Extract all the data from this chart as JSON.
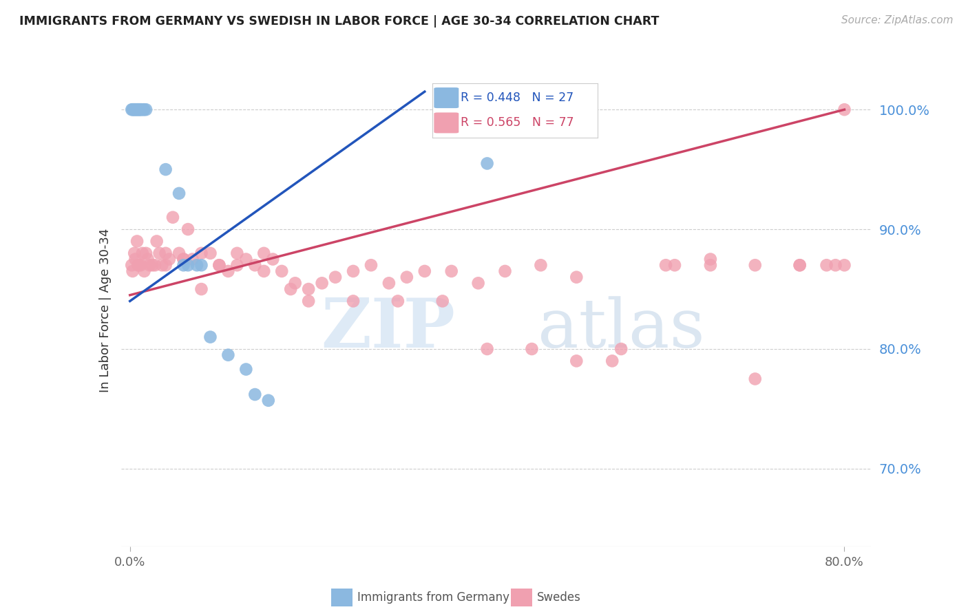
{
  "title": "IMMIGRANTS FROM GERMANY VS SWEDISH IN LABOR FORCE | AGE 30-34 CORRELATION CHART",
  "source": "Source: ZipAtlas.com",
  "ylabel": "In Labor Force | Age 30-34",
  "y_tick_labels_right": [
    "100.0%",
    "90.0%",
    "80.0%",
    "70.0%"
  ],
  "legend_label_blue": "Immigrants from Germany",
  "legend_label_pink": "Swedes",
  "legend_r_blue": "R = 0.448",
  "legend_n_blue": "N = 27",
  "legend_r_pink": "R = 0.565",
  "legend_n_pink": "N = 77",
  "blue_color": "#8BB8E0",
  "pink_color": "#F0A0B0",
  "blue_line_color": "#2255BB",
  "pink_line_color": "#CC4466",
  "right_axis_color": "#4A90D9",
  "watermark_zip": "ZIP",
  "watermark_atlas": "atlas",
  "xlim": [
    -0.01,
    0.83
  ],
  "ylim": [
    0.635,
    1.03
  ],
  "yticks_right": [
    1.0,
    0.9,
    0.8,
    0.7
  ],
  "xticks": [
    0.0,
    0.8
  ],
  "grid_color": "#CCCCCC",
  "background_color": "#FFFFFF",
  "blue_x": [
    0.002,
    0.003,
    0.004,
    0.005,
    0.006,
    0.007,
    0.008,
    0.009,
    0.01,
    0.011,
    0.012,
    0.013,
    0.015,
    0.016,
    0.018,
    0.04,
    0.055,
    0.065,
    0.08,
    0.09,
    0.11,
    0.13,
    0.14,
    0.155,
    0.06,
    0.075,
    0.4
  ],
  "blue_y": [
    1.0,
    1.0,
    1.0,
    1.0,
    1.0,
    1.0,
    1.0,
    1.0,
    1.0,
    1.0,
    1.0,
    1.0,
    1.0,
    1.0,
    1.0,
    0.95,
    0.93,
    0.87,
    0.87,
    0.81,
    0.795,
    0.783,
    0.762,
    0.757,
    0.87,
    0.87,
    0.955
  ],
  "pink_x": [
    0.002,
    0.003,
    0.005,
    0.006,
    0.008,
    0.009,
    0.01,
    0.012,
    0.014,
    0.016,
    0.018,
    0.02,
    0.022,
    0.025,
    0.028,
    0.03,
    0.033,
    0.036,
    0.04,
    0.044,
    0.048,
    0.055,
    0.06,
    0.065,
    0.07,
    0.08,
    0.09,
    0.1,
    0.11,
    0.12,
    0.13,
    0.14,
    0.15,
    0.16,
    0.17,
    0.185,
    0.2,
    0.215,
    0.23,
    0.25,
    0.27,
    0.29,
    0.31,
    0.33,
    0.36,
    0.39,
    0.42,
    0.46,
    0.5,
    0.54,
    0.61,
    0.65,
    0.7,
    0.75,
    0.78,
    0.8,
    0.04,
    0.06,
    0.08,
    0.1,
    0.12,
    0.15,
    0.18,
    0.2,
    0.25,
    0.3,
    0.35,
    0.4,
    0.45,
    0.5,
    0.55,
    0.6,
    0.65,
    0.7,
    0.75,
    0.79,
    0.8
  ],
  "pink_y": [
    0.87,
    0.865,
    0.88,
    0.875,
    0.89,
    0.87,
    0.87,
    0.87,
    0.88,
    0.865,
    0.88,
    0.875,
    0.87,
    0.87,
    0.87,
    0.89,
    0.88,
    0.87,
    0.88,
    0.875,
    0.91,
    0.88,
    0.875,
    0.9,
    0.875,
    0.88,
    0.88,
    0.87,
    0.865,
    0.88,
    0.875,
    0.87,
    0.88,
    0.875,
    0.865,
    0.855,
    0.85,
    0.855,
    0.86,
    0.865,
    0.87,
    0.855,
    0.86,
    0.865,
    0.865,
    0.855,
    0.865,
    0.87,
    0.86,
    0.79,
    0.87,
    0.875,
    0.775,
    0.87,
    0.87,
    1.0,
    0.87,
    0.875,
    0.85,
    0.87,
    0.87,
    0.865,
    0.85,
    0.84,
    0.84,
    0.84,
    0.84,
    0.8,
    0.8,
    0.79,
    0.8,
    0.87,
    0.87,
    0.87,
    0.87,
    0.87,
    0.87
  ]
}
